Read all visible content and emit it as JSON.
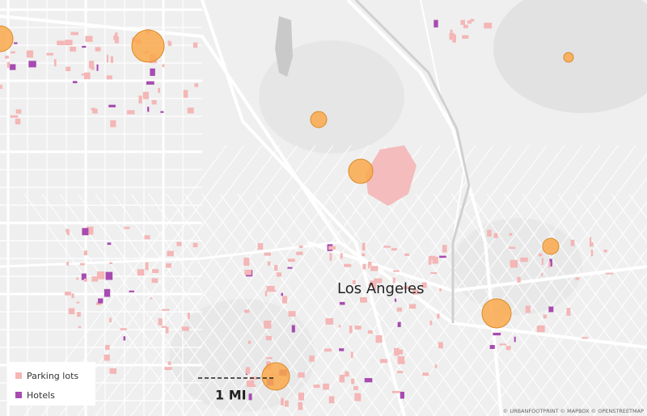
{
  "map": {
    "place_label": "Los Angeles",
    "legend": [
      {
        "label": "Parking lots"
      },
      {
        "label": "Hotels"
      }
    ],
    "scale_label": "1 MI",
    "attribution": "© URBANFOOTPRINT © MAPBOX © OPENSTREETMAP"
  }
}
